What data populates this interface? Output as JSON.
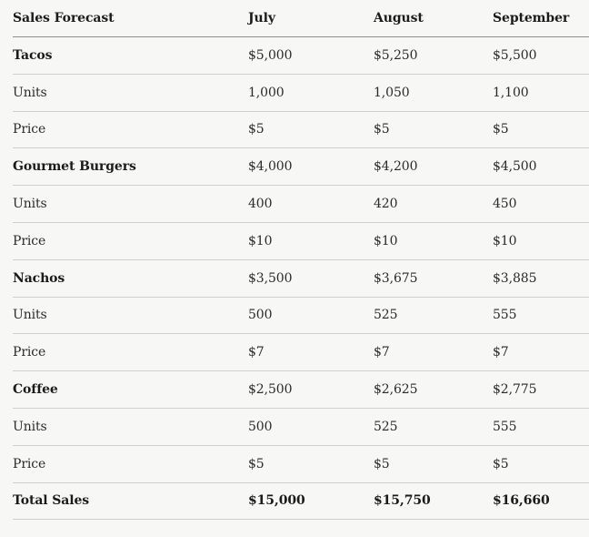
{
  "table": {
    "headers": [
      "Sales Forecast",
      "July",
      "August",
      "September"
    ],
    "rows": [
      {
        "label": "Tacos",
        "bold": true,
        "values": [
          "$5,000",
          "$5,250",
          "$5,500"
        ]
      },
      {
        "label": "Units",
        "bold": false,
        "values": [
          "1,000",
          "1,050",
          "1,100"
        ]
      },
      {
        "label": "Price",
        "bold": false,
        "values": [
          "$5",
          "$5",
          "$5"
        ]
      },
      {
        "label": "Gourmet Burgers",
        "bold": true,
        "values": [
          "$4,000",
          "$4,200",
          "$4,500"
        ]
      },
      {
        "label": "Units",
        "bold": false,
        "values": [
          "400",
          "420",
          "450"
        ]
      },
      {
        "label": "Price",
        "bold": false,
        "values": [
          "$10",
          "$10",
          "$10"
        ]
      },
      {
        "label": "Nachos",
        "bold": true,
        "values": [
          "$3,500",
          "$3,675",
          "$3,885"
        ]
      },
      {
        "label": "Units",
        "bold": false,
        "values": [
          "500",
          "525",
          "555"
        ]
      },
      {
        "label": "Price",
        "bold": false,
        "values": [
          "$7",
          "$7",
          "$7"
        ]
      },
      {
        "label": "Coffee",
        "bold": true,
        "values": [
          "$2,500",
          "$2,625",
          "$2,775"
        ]
      },
      {
        "label": "Units",
        "bold": false,
        "values": [
          "500",
          "525",
          "555"
        ]
      },
      {
        "label": "Price",
        "bold": false,
        "values": [
          "$5",
          "$5",
          "$5"
        ]
      },
      {
        "label": "Total Sales",
        "bold": true,
        "values": [
          "$15,000",
          "$15,750",
          "$16,660"
        ],
        "values_bold": true
      }
    ]
  }
}
